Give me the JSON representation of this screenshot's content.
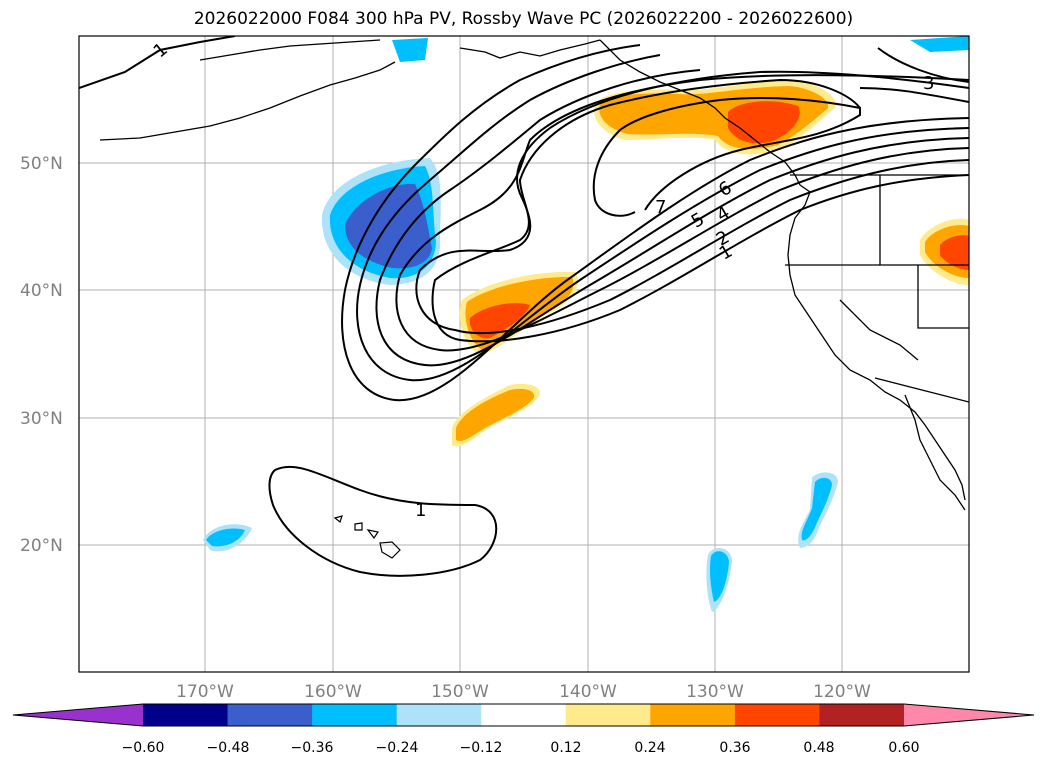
{
  "title": "2026022000 F084 300 hPa PV, Rossby Wave PC (2026022200 - 2026022600)",
  "map": {
    "lat_labels": [
      "50°N",
      "40°N",
      "30°N",
      "20°N"
    ],
    "lon_labels": [
      "170°W",
      "160°W",
      "150°W",
      "140°W",
      "130°W",
      "120°W"
    ],
    "contour_labels": [
      "1",
      "3",
      "7",
      "6",
      "5",
      "4",
      "2",
      "1",
      "1"
    ]
  },
  "colorbar": {
    "colors": [
      "#9932CC",
      "#00008B",
      "#3A5FCD",
      "#00BFFF",
      "#ADE2F9",
      "#FFFFFF",
      "#FFEB8C",
      "#FFA500",
      "#FF4500",
      "#B22222",
      "#FF88AA"
    ],
    "tick_labels": [
      "−0.60",
      "−0.48",
      "−0.36",
      "−0.24",
      "−0.12",
      "0.12",
      "0.24",
      "0.36",
      "0.48",
      "0.60"
    ]
  }
}
